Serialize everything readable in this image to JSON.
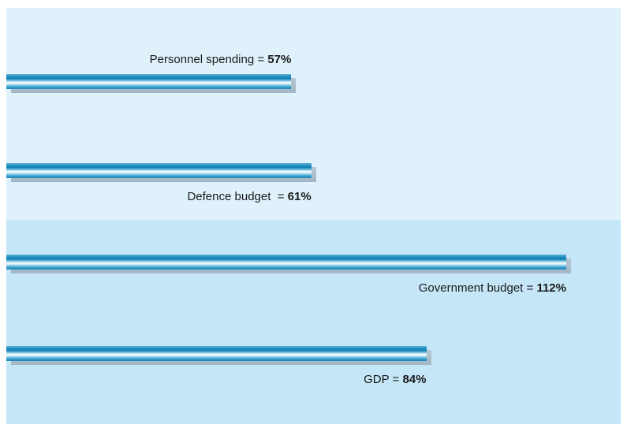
{
  "chart_data": {
    "type": "bar",
    "orientation": "horizontal",
    "categories": [
      "Personnel spending",
      "Defence budget",
      "Government budget",
      "GDP"
    ],
    "label_prefixes": [
      "Personnel spending = ",
      "Defence budget  = ",
      "Government budget = ",
      "GDP = "
    ],
    "value_labels": [
      "57%",
      "61%",
      "112%",
      "84%"
    ],
    "values": [
      57,
      61,
      112,
      84
    ],
    "label_positions": [
      "above",
      "below",
      "below",
      "below"
    ],
    "grid": false,
    "colors": {
      "bar": "#1a8cc0",
      "bar_highlight": "#ffffff",
      "bar_shadow": "#a8bac9",
      "background_top": "#dff1fb",
      "background_bottom": "#c5e6f7"
    }
  }
}
